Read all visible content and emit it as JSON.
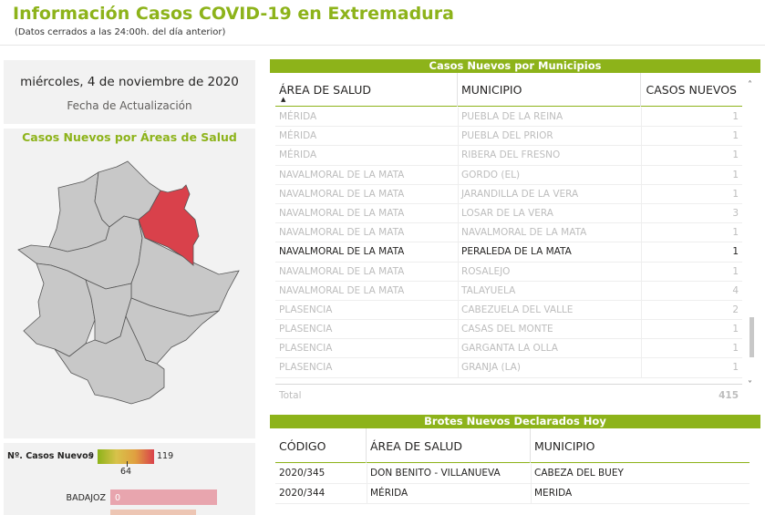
{
  "header": {
    "title": "Información Casos COVID-19 en Extremadura",
    "subtitle": "(Datos cerrados a las 24:00h. del día anterior)"
  },
  "date_card": {
    "date": "miércoles, 4 de noviembre de 2020",
    "label": "Fecha de Actualización"
  },
  "map": {
    "title": "Casos Nuevos por Áreas de Salud",
    "region_fill": "#c8c8c8",
    "highlight_fill": "#d9414b"
  },
  "legend": {
    "label": "Nº. Casos Nuevos",
    "min": "9",
    "mid": "64",
    "max": "119"
  },
  "bars": {
    "first_label": "BADAJOZ",
    "first_value": "0"
  },
  "municipios_table": {
    "title": "Casos Nuevos por Municipios",
    "columns": [
      "ÁREA DE SALUD",
      "MUNICIPIO",
      "CASOS NUEVOS"
    ],
    "rows": [
      {
        "area": "MÉRIDA",
        "municipio": "PUEBLA DE LA REINA",
        "casos": "1",
        "highlight": false
      },
      {
        "area": "MÉRIDA",
        "municipio": "PUEBLA DEL PRIOR",
        "casos": "1",
        "highlight": false
      },
      {
        "area": "MÉRIDA",
        "municipio": "RIBERA DEL FRESNO",
        "casos": "1",
        "highlight": false
      },
      {
        "area": "NAVALMORAL DE LA MATA",
        "municipio": "GORDO (EL)",
        "casos": "1",
        "highlight": false
      },
      {
        "area": "NAVALMORAL DE LA MATA",
        "municipio": "JARANDILLA DE LA VERA",
        "casos": "1",
        "highlight": false
      },
      {
        "area": "NAVALMORAL DE LA MATA",
        "municipio": "LOSAR DE LA VERA",
        "casos": "3",
        "highlight": false
      },
      {
        "area": "NAVALMORAL DE LA MATA",
        "municipio": "NAVALMORAL DE LA MATA",
        "casos": "1",
        "highlight": false
      },
      {
        "area": "NAVALMORAL DE LA MATA",
        "municipio": "PERALEDA DE LA MATA",
        "casos": "1",
        "highlight": true
      },
      {
        "area": "NAVALMORAL DE LA MATA",
        "municipio": "ROSALEJO",
        "casos": "1",
        "highlight": false
      },
      {
        "area": "NAVALMORAL DE LA MATA",
        "municipio": "TALAYUELA",
        "casos": "4",
        "highlight": false
      },
      {
        "area": "PLASENCIA",
        "municipio": "CABEZUELA DEL VALLE",
        "casos": "2",
        "highlight": false
      },
      {
        "area": "PLASENCIA",
        "municipio": "CASAS DEL MONTE",
        "casos": "1",
        "highlight": false
      },
      {
        "area": "PLASENCIA",
        "municipio": "GARGANTA LA OLLA",
        "casos": "1",
        "highlight": false
      },
      {
        "area": "PLASENCIA",
        "municipio": "GRANJA (LA)",
        "casos": "1",
        "highlight": false
      }
    ],
    "total_label": "Total",
    "total_value": "415"
  },
  "brotes_table": {
    "title": "Brotes Nuevos Declarados Hoy",
    "columns": [
      "CÓDIGO",
      "ÁREA DE SALUD",
      "MUNICIPIO"
    ],
    "rows": [
      {
        "codigo": "2020/345",
        "area": "DON BENITO - VILLANUEVA",
        "municipio": "CABEZA DEL BUEY"
      },
      {
        "codigo": "2020/344",
        "area": "MÉRIDA",
        "municipio": "MERIDA"
      }
    ]
  },
  "icons": {
    "sort": "sort-up-icon",
    "scroll_up": "chevron-up-icon",
    "scroll_down": "chevron-down-icon"
  }
}
